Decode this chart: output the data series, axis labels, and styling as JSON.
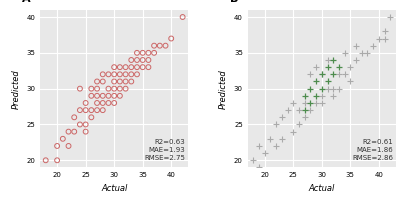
{
  "panel_A": {
    "label": "A",
    "annotation": "R2=0.63\nMAE=1.93\nRMSE=2.75",
    "xlabel": "Actual",
    "ylabel": "Predicted",
    "xlim": [
      17,
      43
    ],
    "ylim": [
      19,
      41
    ],
    "xticks": [
      20,
      25,
      30,
      35,
      40
    ],
    "yticks": [
      20,
      25,
      30,
      35,
      40
    ],
    "marker_edge_color": "#cc6666",
    "marker_size": 3.5,
    "actual": [
      18,
      20,
      20,
      21,
      22,
      22,
      23,
      23,
      24,
      24,
      24,
      25,
      25,
      25,
      25,
      26,
      26,
      26,
      26,
      27,
      27,
      27,
      27,
      27,
      28,
      28,
      28,
      28,
      28,
      29,
      29,
      29,
      29,
      30,
      30,
      30,
      30,
      30,
      30,
      31,
      31,
      31,
      31,
      31,
      32,
      32,
      32,
      32,
      33,
      33,
      33,
      33,
      34,
      34,
      34,
      34,
      35,
      35,
      35,
      36,
      36,
      36,
      37,
      37,
      38,
      39,
      40,
      42
    ],
    "predicted": [
      20,
      22,
      20,
      23,
      24,
      22,
      26,
      24,
      25,
      27,
      30,
      25,
      28,
      24,
      27,
      27,
      26,
      29,
      30,
      27,
      29,
      28,
      31,
      30,
      28,
      29,
      27,
      31,
      32,
      29,
      30,
      28,
      32,
      28,
      30,
      31,
      29,
      32,
      33,
      30,
      31,
      29,
      33,
      32,
      31,
      30,
      33,
      32,
      31,
      32,
      33,
      34,
      32,
      33,
      35,
      34,
      33,
      35,
      34,
      33,
      35,
      34,
      35,
      36,
      36,
      36,
      37,
      40
    ]
  },
  "panel_B": {
    "label": "B",
    "annotation": "R2=0.61\nMAE=1.86\nRMSE=2.86",
    "xlabel": "Actual",
    "ylabel": "Predicted",
    "xlim": [
      17,
      43
    ],
    "ylim": [
      19,
      41
    ],
    "xticks": [
      20,
      25,
      30,
      35,
      40
    ],
    "yticks": [
      20,
      25,
      30,
      35,
      40
    ],
    "marker_color_gray": "#aaaaaa",
    "marker_color_green": "#4d8c4d",
    "marker_size": 18,
    "actual_gray": [
      18,
      19,
      19,
      20,
      21,
      22,
      22,
      23,
      23,
      24,
      25,
      25,
      26,
      26,
      27,
      27,
      28,
      28,
      29,
      29,
      30,
      30,
      30,
      31,
      31,
      32,
      32,
      33,
      33,
      34,
      34,
      35,
      35,
      36,
      36,
      37,
      38,
      39,
      40,
      41,
      41,
      42
    ],
    "predicted_gray": [
      20,
      22,
      19,
      21,
      23,
      25,
      22,
      26,
      23,
      27,
      24,
      28,
      27,
      25,
      28,
      26,
      27,
      32,
      28,
      33,
      29,
      32,
      28,
      30,
      34,
      30,
      29,
      32,
      30,
      32,
      35,
      33,
      31,
      34,
      36,
      35,
      35,
      36,
      37,
      37,
      38,
      40
    ],
    "actual_green": [
      27,
      27,
      28,
      28,
      29,
      29,
      30,
      30,
      31,
      31,
      32,
      32,
      33
    ],
    "predicted_green": [
      27,
      29,
      28,
      30,
      29,
      31,
      30,
      32,
      31,
      33,
      32,
      34,
      33
    ]
  },
  "bg_color": "#e8e8e8",
  "grid_color": "#ffffff",
  "annot_fontsize": 5.0,
  "axis_label_fontsize": 6,
  "tick_fontsize": 5,
  "panel_label_fontsize": 8
}
